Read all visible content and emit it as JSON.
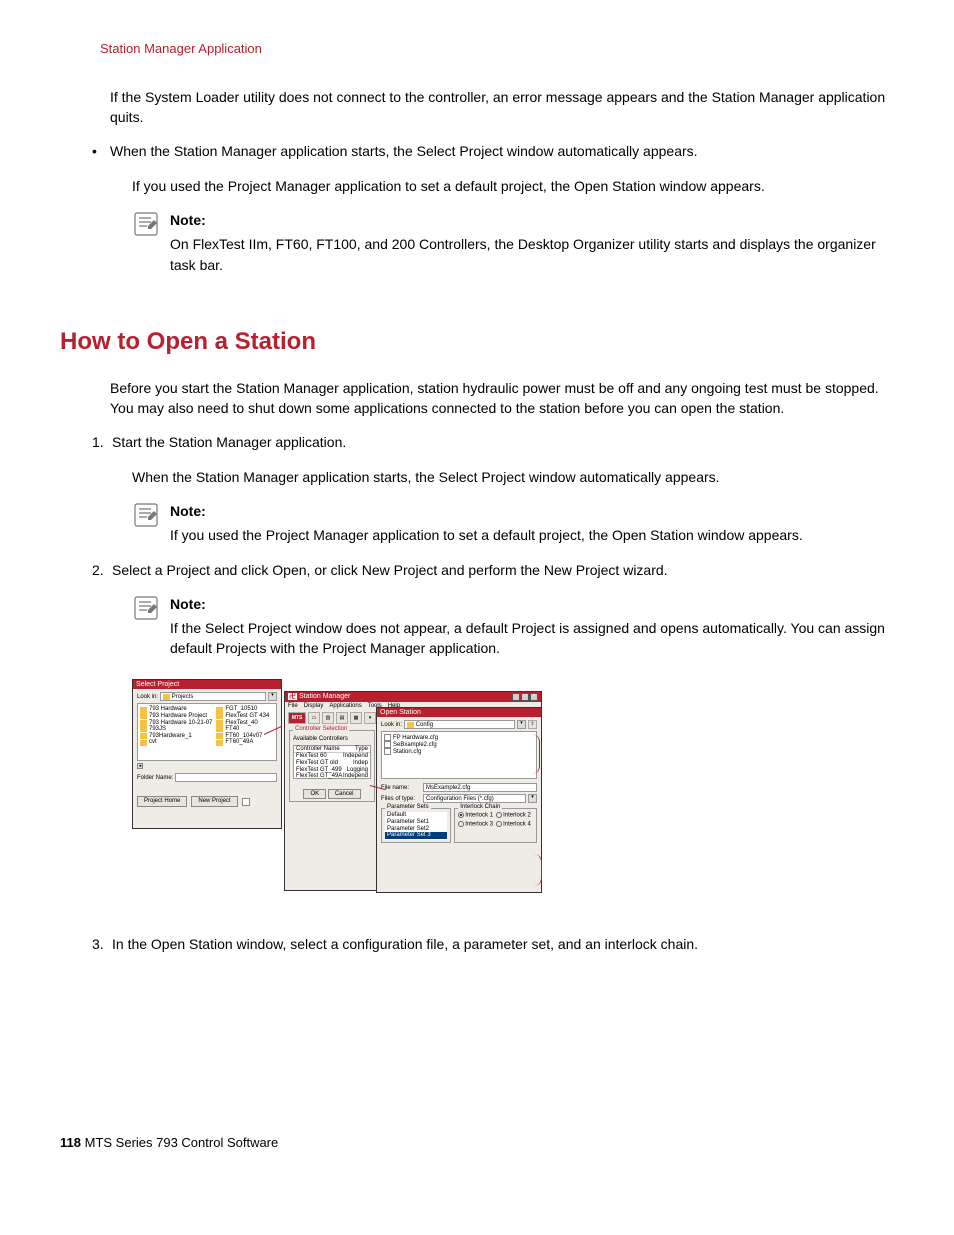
{
  "header": {
    "title": "Station Manager Application"
  },
  "intro": {
    "p1": "If the System Loader utility does not connect to the controller, an error message appears and the Station Manager application quits.",
    "bullet1": "When the Station Manager application starts, the Select Project window automatically appears.",
    "p2": "If you used the Project Manager application to set a default project, the Open Station window appears.",
    "note_label": "Note:",
    "note_body": "On FlexTest IIm, FT60, FT100, and 200 Controllers, the Desktop Organizer utility starts and displays the organizer task bar."
  },
  "section_title": "How to Open a Station",
  "section": {
    "intro": "Before you start the Station Manager application, station hydraulic power must be off and any ongoing test must be stopped. You may also need to shut down some applications connected to the station before you can open the station.",
    "step1": "Start the Station Manager application.",
    "step1_sub": "When the Station Manager application starts, the Select Project window automatically appears.",
    "note1_label": "Note:",
    "note1_body": "If you used the Project Manager application to set a default project, the Open Station window appears.",
    "step2": "Select a Project and click Open, or click New Project and perform the New Project wizard.",
    "note2_label": "Note:",
    "note2_body": "If the Select Project window does not appear, a default Project is assigned and opens automatically. You can assign default Projects with the Project Manager application.",
    "step3": "In the Open Station window, select a configuration file, a parameter set, and an interlock chain."
  },
  "footer": {
    "page": "118",
    "title": "MTS Series 793 Control Software"
  },
  "screens": {
    "select_project": {
      "title": "Select Project",
      "lookin_label": "Look in:",
      "lookin_value": "Projects",
      "items_col1": [
        "793 Hardware",
        "793 Hardware Project",
        "793 Hardware 10-21-07",
        "793JS",
        "793Hardware_1",
        "cvt"
      ],
      "items_col2": [
        "FGT_10510",
        "FlexTest GT   434",
        "FlexTest_40",
        "FT40",
        "FT60_104v07",
        "FT60_49A"
      ],
      "folder_label": "Folder Name:",
      "btn_project_home": "Project Home",
      "btn_new_project": "New Project"
    },
    "station_manager": {
      "title": "Station Manager",
      "menu": [
        "File",
        "Display",
        "Applications",
        "Tools",
        "Help"
      ],
      "toolbar_mts": "MTS",
      "controller_selection": "Controller Selection",
      "available_label": "Available Controllers",
      "col1": "Controller Name",
      "col2": "Type",
      "controllers": [
        {
          "name": "FlexTest 60",
          "type": "Independ"
        },
        {
          "name": "FlexTest GT old",
          "type": "Indep"
        },
        {
          "name": "FlexTest GT_499",
          "type": "Logging"
        },
        {
          "name": "FlexTest GT_49A",
          "type": "Independ"
        }
      ],
      "btn_ok": "OK",
      "btn_cancel": "Cancel"
    },
    "open_station": {
      "title": "Open Station",
      "lookin_label": "Look in:",
      "lookin_value": "Config",
      "files": [
        "FP Hardware.cfg",
        "SeBxample2.cfg",
        "Station.cfg"
      ],
      "filename_label": "File name:",
      "filename_value": "MsExample2.cfg",
      "filetype_label": "Files of type:",
      "filetype_value": "Configuration Files (*.cfg)",
      "param_title": "Parameter Sets",
      "params": [
        "Default",
        "Parameter Set1",
        "Parameter Set2",
        "Parameter Set 3"
      ],
      "interlock_title": "Interlock Chain",
      "interlocks": [
        "Interlock 1",
        "Interlock 2",
        "Interlock 3",
        "Interlock 4"
      ]
    }
  }
}
